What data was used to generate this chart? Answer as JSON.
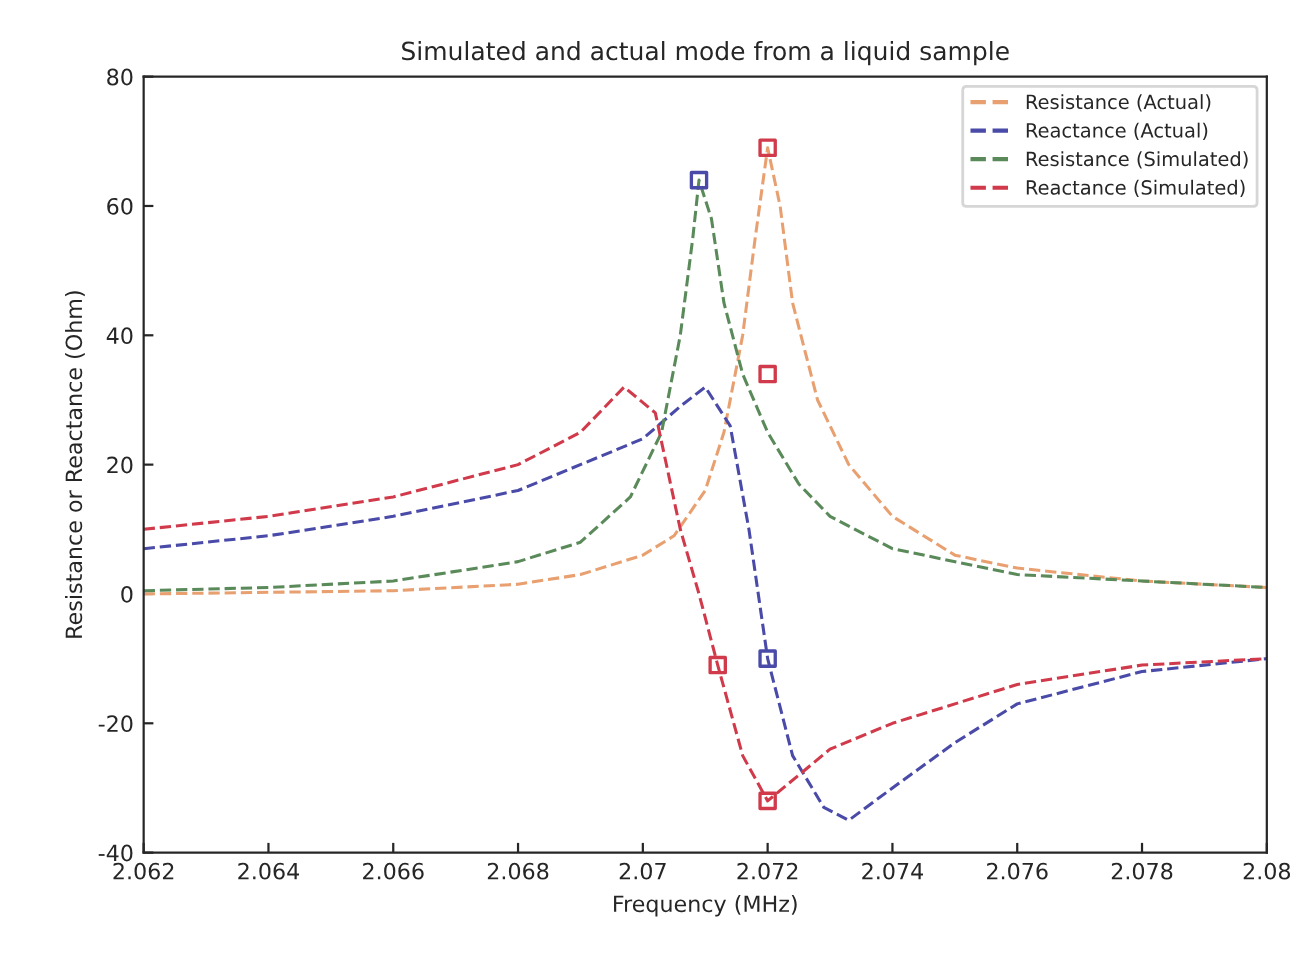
{
  "chart_data": {
    "type": "line",
    "title": "Simulated and actual mode from a liquid sample",
    "xlabel": "Frequency (MHz)",
    "ylabel": "Resistance or Reactance (Ohm)",
    "xlim": [
      2.062,
      2.08
    ],
    "xticks": [
      2.062,
      2.064,
      2.066,
      2.068,
      2.07,
      2.072,
      2.074,
      2.076,
      2.078,
      2.08
    ],
    "ylim": [
      -40,
      80
    ],
    "yticks": [
      -40,
      -20,
      0,
      20,
      40,
      60,
      80
    ],
    "grid": false,
    "legend": "top right",
    "marker": "none",
    "line_style": "dashed",
    "series": [
      {
        "name": "Resistance (Actual)",
        "color": "#e8a070",
        "x": [
          2.062,
          2.066,
          2.068,
          2.069,
          2.07,
          2.0705,
          2.071,
          2.0713,
          2.0716,
          2.0718,
          2.072,
          2.0722,
          2.0724,
          2.0728,
          2.0733,
          2.074,
          2.075,
          2.076,
          2.078,
          2.08
        ],
        "values": [
          0,
          0.5,
          1.5,
          3,
          6,
          9,
          16,
          25,
          40,
          55,
          69,
          60,
          45,
          30,
          20,
          12,
          6,
          4,
          2,
          1
        ]
      },
      {
        "name": "Reactance (Actual)",
        "color": "#4a4aa8",
        "x": [
          2.062,
          2.064,
          2.066,
          2.068,
          2.07,
          2.0706,
          2.071,
          2.0714,
          2.0717,
          2.072,
          2.0724,
          2.0729,
          2.0733,
          2.074,
          2.075,
          2.076,
          2.078,
          2.08
        ],
        "values": [
          7,
          9,
          12,
          16,
          24,
          29,
          32,
          26,
          10,
          -10,
          -25,
          -33,
          -35,
          -30,
          -23,
          -17,
          -12,
          -10
        ]
      },
      {
        "name": "Resistance (Simulated)",
        "color": "#5a8a5a",
        "x": [
          2.062,
          2.064,
          2.066,
          2.068,
          2.069,
          2.0698,
          2.0703,
          2.0706,
          2.0708,
          2.0709,
          2.0711,
          2.0713,
          2.0716,
          2.072,
          2.0725,
          2.073,
          2.074,
          2.076,
          2.078,
          2.08
        ],
        "values": [
          0.5,
          1,
          2,
          5,
          8,
          15,
          25,
          40,
          55,
          64,
          58,
          45,
          34,
          25,
          17,
          12,
          7,
          3,
          2,
          1
        ]
      },
      {
        "name": "Reactance (Simulated)",
        "color": "#d03a4a",
        "x": [
          2.062,
          2.064,
          2.066,
          2.068,
          2.069,
          2.0697,
          2.0702,
          2.0706,
          2.0709,
          2.0712,
          2.0716,
          2.072,
          2.0725,
          2.073,
          2.074,
          2.076,
          2.078,
          2.08
        ],
        "values": [
          10,
          12,
          15,
          20,
          25,
          32,
          28,
          10,
          0,
          -11,
          -25,
          -32,
          -28,
          -24,
          -20,
          -14,
          -11,
          -10
        ]
      },
      {
        "type": "scatter",
        "marker": "square",
        "x": [
          2.0709,
          2.072,
          2.072,
          2.0712,
          2.072,
          2.072
        ],
        "values": [
          64,
          69,
          34,
          -11,
          -10,
          -32
        ],
        "colors": [
          "#4a4aa8",
          "#d03a4a",
          "#d03a4a",
          "#d03a4a",
          "#4a4aa8",
          "#d03a4a"
        ]
      }
    ]
  }
}
